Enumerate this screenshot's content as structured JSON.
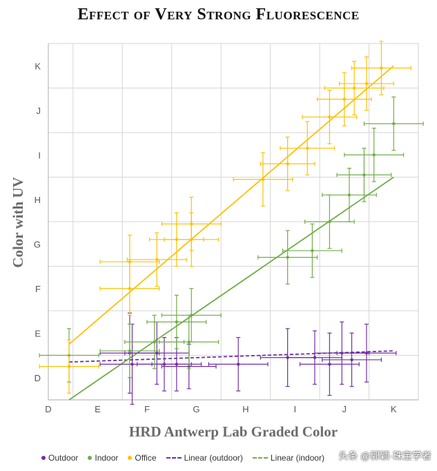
{
  "chart_data": {
    "type": "scatter",
    "title": "Effect of Very Strong Fluorescence",
    "xlabel": "HRD Antwerp Lab Graded Color",
    "ylabel": "Color with UV",
    "x_ticks": [
      "D",
      "E",
      "F",
      "G",
      "H",
      "I",
      "J",
      "K"
    ],
    "y_ticks": [
      "D",
      "E",
      "F",
      "G",
      "H",
      "I",
      "J",
      "K"
    ],
    "xlim": [
      0,
      7.5
    ],
    "ylim": [
      -0.5,
      7.5
    ],
    "grid": true,
    "legend_position": "bottom",
    "series": [
      {
        "name": "Outdoor",
        "color": "#7030a0",
        "points": [
          {
            "x": 2.35,
            "y": 0.3,
            "xerr": 0.55,
            "yerr": 0.6
          },
          {
            "x": 1.65,
            "y": 0.55,
            "xerr": 0.6,
            "yerr": 0.9
          },
          {
            "x": 2.2,
            "y": 0.55,
            "xerr": 0.65,
            "yerr": 0.7
          },
          {
            "x": 1.7,
            "y": 0.3,
            "xerr": 0.65,
            "yerr": 0.9
          },
          {
            "x": 2.6,
            "y": 0.3,
            "xerr": 0.5,
            "yerr": 0.6
          },
          {
            "x": 2.85,
            "y": 0.25,
            "xerr": 0.55,
            "yerr": 0.5
          },
          {
            "x": 3.85,
            "y": 0.3,
            "xerr": 0.6,
            "yerr": 0.6
          },
          {
            "x": 4.85,
            "y": 0.45,
            "xerr": 0.55,
            "yerr": 0.65
          },
          {
            "x": 5.4,
            "y": 0.45,
            "xerr": 0.55,
            "yerr": 0.6
          },
          {
            "x": 5.7,
            "y": 0.3,
            "xerr": 0.6,
            "yerr": 0.7
          },
          {
            "x": 5.95,
            "y": 0.55,
            "xerr": 0.55,
            "yerr": 0.7
          },
          {
            "x": 6.15,
            "y": 0.4,
            "xerr": 0.6,
            "yerr": 0.6
          },
          {
            "x": 6.45,
            "y": 0.55,
            "xerr": 0.6,
            "yerr": 0.65
          }
        ]
      },
      {
        "name": "Indoor",
        "color": "#70ad47",
        "points": [
          {
            "x": 0.42,
            "y": 0.5,
            "xerr": 0.6,
            "yerr": 0.6
          },
          {
            "x": 1.65,
            "y": 0.6,
            "xerr": 0.6,
            "yerr": 0.6
          },
          {
            "x": 2.15,
            "y": 0.8,
            "xerr": 0.6,
            "yerr": 0.6
          },
          {
            "x": 2.6,
            "y": 1.25,
            "xerr": 0.6,
            "yerr": 0.6
          },
          {
            "x": 2.85,
            "y": 0.8,
            "xerr": 0.6,
            "yerr": 0.6
          },
          {
            "x": 2.9,
            "y": 1.4,
            "xerr": 0.6,
            "yerr": 0.6
          },
          {
            "x": 4.85,
            "y": 2.7,
            "xerr": 0.6,
            "yerr": 0.6
          },
          {
            "x": 5.35,
            "y": 2.85,
            "xerr": 0.6,
            "yerr": 0.6
          },
          {
            "x": 5.7,
            "y": 3.5,
            "xerr": 0.5,
            "yerr": 0.6
          },
          {
            "x": 6.1,
            "y": 4.1,
            "xerr": 0.55,
            "yerr": 0.6
          },
          {
            "x": 6.4,
            "y": 4.55,
            "xerr": 0.55,
            "yerr": 0.6
          },
          {
            "x": 6.6,
            "y": 5.0,
            "xerr": 0.6,
            "yerr": 0.6
          },
          {
            "x": 7.0,
            "y": 5.7,
            "xerr": 0.6,
            "yerr": 0.6
          }
        ]
      },
      {
        "name": "Office",
        "color": "#ffc000",
        "points": [
          {
            "x": 0.42,
            "y": 0.25,
            "xerr": 0.6,
            "yerr": 0.6
          },
          {
            "x": 1.65,
            "y": 2.0,
            "xerr": 0.6,
            "yerr": 0.6
          },
          {
            "x": 1.65,
            "y": 2.6,
            "xerr": 0.6,
            "yerr": 0.6
          },
          {
            "x": 2.2,
            "y": 2.65,
            "xerr": 0.6,
            "yerr": 0.6
          },
          {
            "x": 2.6,
            "y": 3.1,
            "xerr": 0.55,
            "yerr": 0.6
          },
          {
            "x": 2.9,
            "y": 3.1,
            "xerr": 0.55,
            "yerr": 0.6
          },
          {
            "x": 2.9,
            "y": 3.45,
            "xerr": 0.6,
            "yerr": 0.6
          },
          {
            "x": 4.35,
            "y": 4.45,
            "xerr": 0.6,
            "yerr": 0.6
          },
          {
            "x": 4.85,
            "y": 4.8,
            "xerr": 0.55,
            "yerr": 0.6
          },
          {
            "x": 5.25,
            "y": 5.15,
            "xerr": 0.55,
            "yerr": 0.6
          },
          {
            "x": 5.7,
            "y": 5.85,
            "xerr": 0.55,
            "yerr": 0.6
          },
          {
            "x": 6.0,
            "y": 6.25,
            "xerr": 0.55,
            "yerr": 0.6
          },
          {
            "x": 6.2,
            "y": 6.5,
            "xerr": 0.6,
            "yerr": 0.6
          },
          {
            "x": 6.45,
            "y": 6.6,
            "xerr": 0.55,
            "yerr": 0.6
          },
          {
            "x": 6.75,
            "y": 6.95,
            "xerr": 0.6,
            "yerr": 0.6
          }
        ]
      }
    ],
    "trendlines": [
      {
        "name": "Linear (outdoor)",
        "color": "#7030a0",
        "style": "dashed",
        "x": [
          0.42,
          7.0
        ],
        "y": [
          0.35,
          0.6
        ]
      },
      {
        "name": "Linear (indoor)",
        "color": "#70ad47",
        "style": "dashed",
        "x": [
          0.42,
          7.0
        ],
        "y": [
          -0.5,
          4.5
        ]
      },
      {
        "name": "Linear (office)",
        "color": "#ffc000",
        "style": "dashed",
        "x": [
          0.42,
          7.0
        ],
        "y": [
          0.75,
          7.0
        ]
      }
    ]
  },
  "legend": {
    "items": [
      {
        "label": "Outdoor",
        "kind": "dot",
        "color": "#7030a0"
      },
      {
        "label": "Indoor",
        "kind": "dot",
        "color": "#70ad47"
      },
      {
        "label": "Office",
        "kind": "dot",
        "color": "#ffc000"
      },
      {
        "label": "Linear (outdoor)",
        "kind": "dash",
        "color": "#7030a0"
      },
      {
        "label": "Linear (indoor)",
        "kind": "dash",
        "color": "#70ad47"
      }
    ]
  },
  "watermark": "头条 @郭颖·珠宝学者"
}
